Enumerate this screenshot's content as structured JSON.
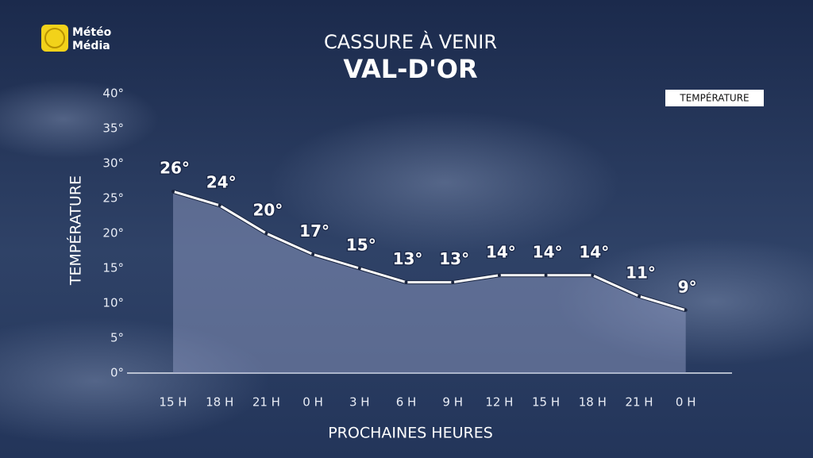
{
  "chart_data": {
    "type": "area",
    "brand": [
      "Météo",
      "Média"
    ],
    "title": "CASSURE À VENIR",
    "subtitle": "VAL-D'OR",
    "y_label": "TEMPÉRATURE",
    "x_label": "PROCHAINES HEURES",
    "categories": [
      "15 H",
      "18 H",
      "21 H",
      "0 H",
      "3 H",
      "6 H",
      "9 H",
      "12 H",
      "15 H",
      "18 H",
      "21 H",
      "0 H"
    ],
    "series": [
      {
        "name": "TEMPÉRATURE",
        "color": "#ffffff",
        "fill": "#9aa3cc",
        "values": [
          26,
          24,
          20,
          17,
          15,
          13,
          13,
          14,
          14,
          14,
          11,
          9
        ],
        "value_labels": [
          "26°",
          "24°",
          "20°",
          "17°",
          "15°",
          "13°",
          "13°",
          "14°",
          "14°",
          "14°",
          "11°",
          "9°"
        ]
      }
    ],
    "ylim": [
      0,
      40
    ],
    "yticks": [
      {
        "value": 0,
        "label": "0°"
      },
      {
        "value": 5,
        "label": "5°"
      },
      {
        "value": 10,
        "label": "10°"
      },
      {
        "value": 15,
        "label": "15°"
      },
      {
        "value": 20,
        "label": "20°"
      },
      {
        "value": 25,
        "label": "25°"
      },
      {
        "value": 30,
        "label": "30°"
      },
      {
        "value": 35,
        "label": "35°"
      },
      {
        "value": 40,
        "label": "40°"
      }
    ],
    "legend": "top-right"
  }
}
